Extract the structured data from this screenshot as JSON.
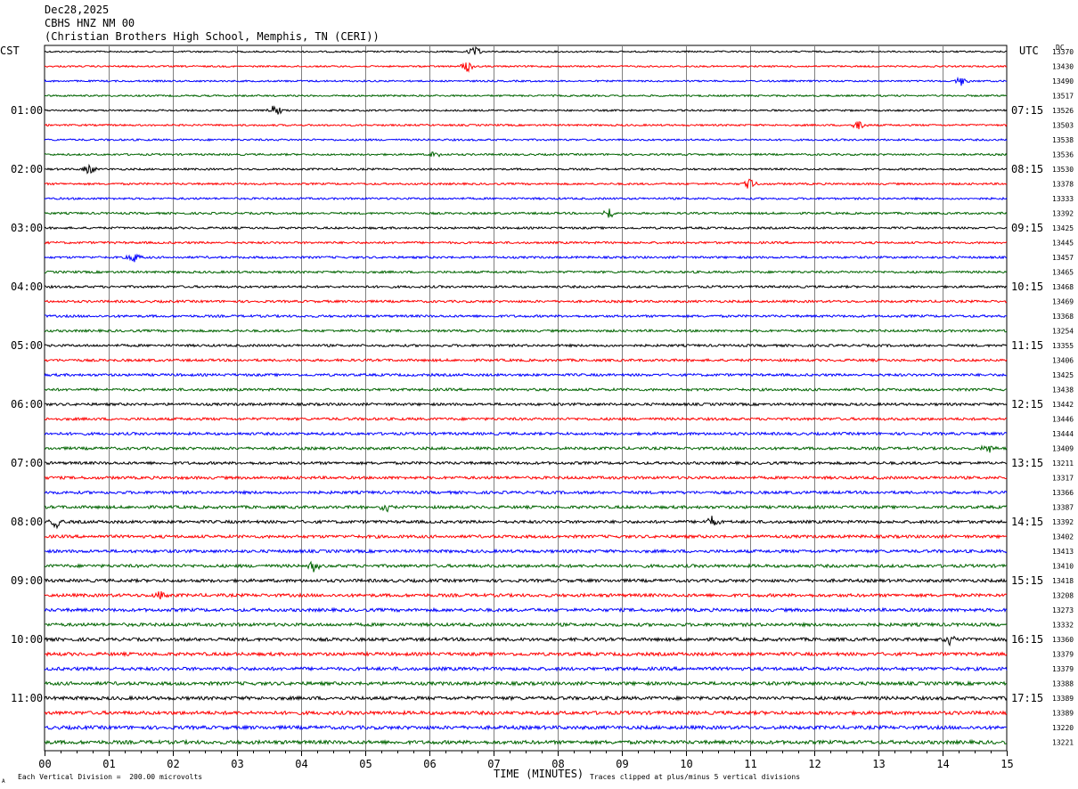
{
  "header": {
    "date": "Dec28,2025",
    "station": "CBHS HNZ NM 00",
    "location": "(Christian Brothers High School, Memphis, TN (CERI))"
  },
  "left_tz": "CST",
  "right_tz": "UTC",
  "dc_label": "DC",
  "footer": {
    "scale": "Each Vertical Division =  200.00 microvolts",
    "clip": "Traces clipped at plus/minus 5 vertical divisions",
    "corner_mark": "A"
  },
  "colors": {
    "black": "#000000",
    "red": "#ff0000",
    "blue": "#0000ff",
    "green": "#006400",
    "grid": "#808080"
  },
  "chart_data": {
    "type": "line",
    "title": "",
    "xlabel": "TIME (MINUTES)",
    "ylabel": "",
    "xlim": [
      0,
      15
    ],
    "x_ticks": [
      "00",
      "01",
      "02",
      "03",
      "04",
      "05",
      "06",
      "07",
      "08",
      "09",
      "10",
      "11",
      "12",
      "13",
      "14",
      "15"
    ],
    "grid": true,
    "color_cycle": [
      "black",
      "red",
      "blue",
      "green"
    ],
    "left_hour_labels": [
      "01:00",
      "02:00",
      "03:00",
      "04:00",
      "05:00",
      "06:00",
      "07:00",
      "08:00",
      "09:00",
      "10:00",
      "11:00"
    ],
    "right_hour_labels": [
      "07:15",
      "08:15",
      "09:15",
      "10:15",
      "11:15",
      "12:15",
      "13:15",
      "14:15",
      "15:15",
      "16:15",
      "17:15"
    ],
    "dc_offsets": [
      "13370",
      "13430",
      "13490",
      "13517",
      "13526",
      "13503",
      "13538",
      "13536",
      "13530",
      "13378",
      "13333",
      "13392",
      "13425",
      "13445",
      "13457",
      "13465",
      "13468",
      "13469",
      "13368",
      "13254",
      "13355",
      "13406",
      "13425",
      "13438",
      "13442",
      "13446",
      "13444",
      "13409",
      "13211",
      "13317",
      "13366",
      "13387",
      "13392",
      "13402",
      "13413",
      "13410",
      "13418",
      "13208",
      "13273",
      "13332",
      "13360",
      "13379",
      "13379",
      "13388",
      "13389",
      "13389",
      "13220",
      "13221"
    ],
    "events": [
      {
        "trace": 0,
        "minute": 6.7
      },
      {
        "trace": 1,
        "minute": 6.6
      },
      {
        "trace": 2,
        "minute": 14.3
      },
      {
        "trace": 4,
        "minute": 3.6
      },
      {
        "trace": 5,
        "minute": 12.7
      },
      {
        "trace": 7,
        "minute": 6.1
      },
      {
        "trace": 8,
        "minute": 0.7
      },
      {
        "trace": 9,
        "minute": 11.0
      },
      {
        "trace": 11,
        "minute": 8.8
      },
      {
        "trace": 14,
        "minute": 1.4
      },
      {
        "trace": 27,
        "minute": 14.7
      },
      {
        "trace": 31,
        "minute": 5.3
      },
      {
        "trace": 32,
        "minute": 0.2
      },
      {
        "trace": 32,
        "minute": 10.4
      },
      {
        "trace": 35,
        "minute": 4.2
      },
      {
        "trace": 37,
        "minute": 1.8
      },
      {
        "trace": 40,
        "minute": 14.1
      }
    ]
  }
}
